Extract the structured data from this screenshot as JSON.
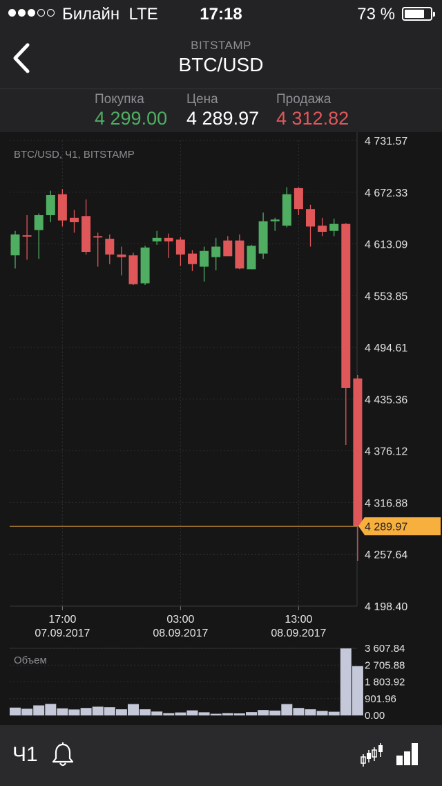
{
  "status_bar": {
    "carrier": "Билайн",
    "network": "LTE",
    "time": "17:18",
    "battery": "73 %",
    "battery_level_pct": 73,
    "signal_bars_filled": 3,
    "signal_bars_total": 5
  },
  "nav": {
    "subtitle": "BITSTAMP",
    "title": "BTC/USD",
    "back_icon": "chevron-left-icon"
  },
  "quotes": {
    "buy_label": "Покупка",
    "buy_value": "4 299.00",
    "price_label": "Цена",
    "price_value": "4 289.97",
    "sell_label": "Продажа",
    "sell_value": "4 312.82"
  },
  "colors": {
    "up": "#4fae62",
    "down": "#e0575a",
    "accent": "#f7b03e",
    "background": "#161616"
  },
  "chart_data": [
    {
      "type": "candlestick",
      "title": "BTC/USD, Ч1, BITSTAMP",
      "ylim": [
        4198.4,
        4731.57
      ],
      "y_ticks": [
        "4 731.57",
        "4 672.33",
        "4 613.09",
        "4 553.85",
        "4 494.61",
        "4 435.36",
        "4 376.12",
        "4 316.88",
        "4 257.64",
        "4 198.40"
      ],
      "x_ticks": [
        {
          "time": "17:00",
          "date": "07.09.2017",
          "index": 4
        },
        {
          "time": "03:00",
          "date": "08.09.2017",
          "index": 14
        },
        {
          "time": "13:00",
          "date": "08.09.2017",
          "index": 24
        }
      ],
      "current_price": 4289.97,
      "current_price_label": "4 289.97",
      "candles": [
        {
          "o": 4600,
          "h": 4628,
          "l": 4585,
          "c": 4624
        },
        {
          "o": 4623,
          "h": 4646,
          "l": 4595,
          "c": 4622
        },
        {
          "o": 4629,
          "h": 4648,
          "l": 4596,
          "c": 4646
        },
        {
          "o": 4646,
          "h": 4674,
          "l": 4638,
          "c": 4669
        },
        {
          "o": 4670,
          "h": 4676,
          "l": 4633,
          "c": 4640
        },
        {
          "o": 4643,
          "h": 4652,
          "l": 4626,
          "c": 4638
        },
        {
          "o": 4645,
          "h": 4664,
          "l": 4601,
          "c": 4604
        },
        {
          "o": 4622,
          "h": 4626,
          "l": 4587,
          "c": 4621
        },
        {
          "o": 4619,
          "h": 4624,
          "l": 4590,
          "c": 4601
        },
        {
          "o": 4601,
          "h": 4610,
          "l": 4577,
          "c": 4598
        },
        {
          "o": 4600,
          "h": 4603,
          "l": 4566,
          "c": 4567
        },
        {
          "o": 4568,
          "h": 4611,
          "l": 4566,
          "c": 4609
        },
        {
          "o": 4616,
          "h": 4628,
          "l": 4612,
          "c": 4620
        },
        {
          "o": 4620,
          "h": 4625,
          "l": 4597,
          "c": 4616
        },
        {
          "o": 4618,
          "h": 4621,
          "l": 4588,
          "c": 4601
        },
        {
          "o": 4602,
          "h": 4606,
          "l": 4582,
          "c": 4590
        },
        {
          "o": 4587,
          "h": 4610,
          "l": 4570,
          "c": 4605
        },
        {
          "o": 4598,
          "h": 4620,
          "l": 4583,
          "c": 4610
        },
        {
          "o": 4617,
          "h": 4622,
          "l": 4601,
          "c": 4599
        },
        {
          "o": 4617,
          "h": 4624,
          "l": 4584,
          "c": 4585
        },
        {
          "o": 4584,
          "h": 4612,
          "l": 4584,
          "c": 4611
        },
        {
          "o": 4602,
          "h": 4649,
          "l": 4596,
          "c": 4639
        },
        {
          "o": 4639,
          "h": 4643,
          "l": 4628,
          "c": 4641
        },
        {
          "o": 4634,
          "h": 4678,
          "l": 4632,
          "c": 4670
        },
        {
          "o": 4677,
          "h": 4678,
          "l": 4646,
          "c": 4653
        },
        {
          "o": 4653,
          "h": 4658,
          "l": 4610,
          "c": 4633
        },
        {
          "o": 4634,
          "h": 4643,
          "l": 4622,
          "c": 4627
        },
        {
          "o": 4628,
          "h": 4642,
          "l": 4622,
          "c": 4636
        },
        {
          "o": 4636,
          "h": 4637,
          "l": 4383,
          "c": 4448
        },
        {
          "o": 4459,
          "h": 4463,
          "l": 4250,
          "c": 4290
        }
      ]
    },
    {
      "type": "bar",
      "title": "Объем",
      "ylim": [
        0,
        3607.84
      ],
      "y_ticks": [
        "3 607.84",
        "2 705.88",
        "1 803.92",
        "901.96",
        "0.00"
      ],
      "values": [
        420,
        360,
        540,
        620,
        380,
        320,
        400,
        470,
        440,
        330,
        610,
        330,
        210,
        120,
        160,
        270,
        170,
        90,
        120,
        110,
        180,
        290,
        260,
        610,
        400,
        330,
        240,
        200,
        3600,
        2650
      ]
    }
  ],
  "bottom_bar": {
    "interval": "Ч1",
    "bell_icon": "bell-icon",
    "candle_icon": "candlestick-chart-icon",
    "bars_icon": "bar-chart-icon"
  }
}
